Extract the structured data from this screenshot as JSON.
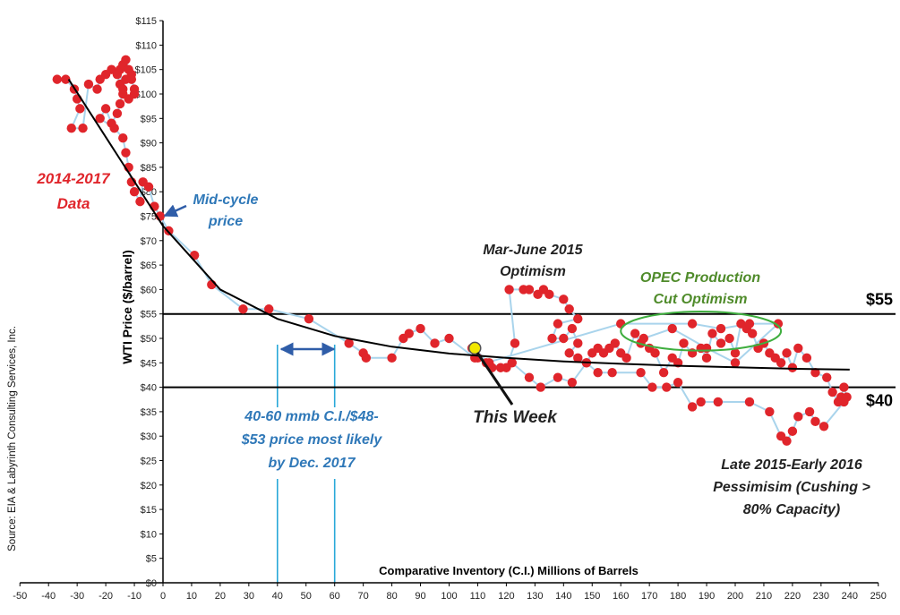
{
  "chart_data": {
    "type": "scatter",
    "title": "",
    "xlabel": "Comparative Inventory (C.I.) Millions of Barrels",
    "ylabel": "WTI Price ($/barrel)",
    "source": "Source: EIA & Labyrinth Consulting Services, Inc.",
    "xlim": [
      -50,
      250
    ],
    "ylim": [
      0,
      115
    ],
    "xticks": [
      -50,
      -40,
      -30,
      -20,
      -10,
      0,
      10,
      20,
      30,
      40,
      50,
      60,
      70,
      80,
      90,
      100,
      110,
      120,
      130,
      140,
      150,
      160,
      170,
      180,
      190,
      200,
      210,
      220,
      230,
      240,
      250
    ],
    "yticks": [
      0,
      5,
      10,
      15,
      20,
      25,
      30,
      35,
      40,
      45,
      50,
      55,
      60,
      65,
      70,
      75,
      80,
      85,
      90,
      95,
      100,
      105,
      110,
      115
    ],
    "ytick_labels": [
      "$0",
      "$5",
      "$10",
      "$15",
      "$20",
      "$25",
      "$30",
      "$35",
      "$40",
      "$45",
      "$50",
      "$55",
      "$60",
      "$65",
      "$70",
      "$75",
      "$80",
      "$85",
      "$90",
      "$95",
      "$100",
      "$105",
      "$110",
      "$115"
    ],
    "grid": false,
    "series": [
      {
        "name": "2014-2017 Data",
        "color": "#e0252b",
        "line_color": "#a9d4ec",
        "points": [
          [
            -37,
            103
          ],
          [
            -34,
            103
          ],
          [
            -31,
            101
          ],
          [
            -30,
            99
          ],
          [
            -29,
            97
          ],
          [
            -32,
            93
          ],
          [
            -28,
            93
          ],
          [
            -26,
            102
          ],
          [
            -23,
            101
          ],
          [
            -22,
            103
          ],
          [
            -20,
            104
          ],
          [
            -18,
            105
          ],
          [
            -16,
            104
          ],
          [
            -15,
            102
          ],
          [
            -14,
            100
          ],
          [
            -15,
            105
          ],
          [
            -14,
            106
          ],
          [
            -13,
            107
          ],
          [
            -12,
            105
          ],
          [
            -11,
            103
          ],
          [
            -10,
            101
          ],
          [
            -12,
            99
          ],
          [
            -10,
            100
          ],
          [
            -11,
            104
          ],
          [
            -13,
            103
          ],
          [
            -14,
            101
          ],
          [
            -15,
            98
          ],
          [
            -16,
            96
          ],
          [
            -18,
            94
          ],
          [
            -20,
            97
          ],
          [
            -22,
            95
          ],
          [
            -17,
            93
          ],
          [
            -14,
            91
          ],
          [
            -13,
            88
          ],
          [
            -12,
            85
          ],
          [
            -11,
            82
          ],
          [
            -10,
            80
          ],
          [
            -8,
            78
          ],
          [
            -7,
            82
          ],
          [
            -5,
            81
          ],
          [
            -3,
            77
          ],
          [
            -1,
            75
          ],
          [
            2,
            72
          ],
          [
            11,
            67
          ],
          [
            17,
            61
          ],
          [
            28,
            56
          ],
          [
            37,
            56
          ],
          [
            51,
            54
          ],
          [
            65,
            49
          ],
          [
            70,
            47
          ],
          [
            71,
            46
          ],
          [
            80,
            46
          ],
          [
            84,
            50
          ],
          [
            86,
            51
          ],
          [
            90,
            52
          ],
          [
            95,
            49
          ],
          [
            100,
            50
          ],
          [
            109,
            46
          ],
          [
            109,
            48
          ],
          [
            115,
            44
          ],
          [
            120,
            44
          ],
          [
            123,
            49
          ],
          [
            121,
            60
          ],
          [
            126,
            60
          ],
          [
            128,
            60
          ],
          [
            131,
            59
          ],
          [
            133,
            60
          ],
          [
            135,
            59
          ],
          [
            140,
            58
          ],
          [
            142,
            56
          ],
          [
            145,
            54
          ],
          [
            138,
            53
          ],
          [
            136,
            50
          ],
          [
            140,
            50
          ],
          [
            143,
            52
          ],
          [
            145,
            49
          ],
          [
            142,
            47
          ],
          [
            145,
            46
          ],
          [
            148,
            45
          ],
          [
            150,
            47
          ],
          [
            152,
            48
          ],
          [
            154,
            47
          ],
          [
            156,
            48
          ],
          [
            158,
            49
          ],
          [
            160,
            47
          ],
          [
            162,
            46
          ],
          [
            165,
            51
          ],
          [
            167,
            49
          ],
          [
            170,
            48
          ],
          [
            172,
            47
          ],
          [
            175,
            43
          ],
          [
            178,
            46
          ],
          [
            180,
            45
          ],
          [
            182,
            49
          ],
          [
            185,
            47
          ],
          [
            188,
            48
          ],
          [
            190,
            46
          ],
          [
            192,
            51
          ],
          [
            195,
            49
          ],
          [
            198,
            50
          ],
          [
            200,
            47
          ],
          [
            202,
            53
          ],
          [
            204,
            52
          ],
          [
            206,
            51
          ],
          [
            208,
            48
          ],
          [
            210,
            49
          ],
          [
            212,
            47
          ],
          [
            214,
            46
          ],
          [
            216,
            45
          ],
          [
            218,
            47
          ],
          [
            220,
            44
          ],
          [
            222,
            48
          ],
          [
            225,
            46
          ],
          [
            228,
            43
          ],
          [
            232,
            42
          ],
          [
            234,
            39
          ],
          [
            236,
            37
          ],
          [
            237,
            38
          ],
          [
            238,
            40
          ],
          [
            239,
            38
          ],
          [
            238,
            37
          ],
          [
            231,
            32
          ],
          [
            228,
            33
          ],
          [
            226,
            35
          ],
          [
            222,
            34
          ],
          [
            220,
            31
          ],
          [
            218,
            29
          ],
          [
            216,
            30
          ],
          [
            212,
            35
          ],
          [
            205,
            37
          ],
          [
            194,
            37
          ],
          [
            188,
            37
          ],
          [
            185,
            36
          ],
          [
            180,
            41
          ],
          [
            176,
            40
          ],
          [
            171,
            40
          ],
          [
            167,
            43
          ],
          [
            157,
            43
          ],
          [
            152,
            43
          ],
          [
            148,
            45
          ],
          [
            143,
            41
          ],
          [
            138,
            42
          ],
          [
            132,
            40
          ],
          [
            128,
            42
          ],
          [
            122,
            45
          ],
          [
            118,
            44
          ],
          [
            114,
            45
          ],
          [
            110,
            46
          ],
          [
            108,
            48
          ],
          [
            113,
            45
          ],
          [
            160,
            53
          ],
          [
            185,
            53
          ],
          [
            195,
            52
          ],
          [
            205,
            53
          ],
          [
            215,
            53
          ],
          [
            200,
            45
          ],
          [
            190,
            48
          ],
          [
            178,
            52
          ],
          [
            168,
            50
          ]
        ]
      }
    ],
    "this_week": {
      "x": 109,
      "y": 48,
      "color": "#f2e800"
    },
    "trend_curve": {
      "x": [
        -33,
        0,
        20,
        40,
        60,
        80,
        100,
        120,
        140,
        160,
        180,
        200,
        220,
        240
      ],
      "y": [
        103,
        73,
        60,
        54,
        50.5,
        48.3,
        46.9,
        46,
        45.3,
        44.8,
        44.4,
        44.1,
        43.8,
        43.6
      ],
      "color": "#000000"
    },
    "hlines": [
      {
        "y": 55,
        "label": "$55"
      },
      {
        "y": 40,
        "label": "$40"
      }
    ],
    "vlines": [
      {
        "x": 40
      },
      {
        "x": 60
      }
    ],
    "ellipse": {
      "cx": 188,
      "cy": 51.5,
      "rx": 28,
      "ry": 4,
      "color": "#3fae3f"
    },
    "annotations": {
      "data_label": [
        "2014-2017",
        "Data"
      ],
      "mid_cycle": [
        "Mid-cycle",
        "price"
      ],
      "mar_june": [
        "Mar-June 2015",
        "Optimism"
      ],
      "opec": [
        "OPEC Production",
        "Cut Optimism"
      ],
      "this_week": "This Week",
      "most_likely": [
        "40-60 mmb C.I./$48-",
        "$53 price most likely",
        "by Dec. 2017"
      ],
      "late_2015": [
        "Late 2015-Early 2016",
        "Pessimisim (Cushing >",
        "80% Capacity)"
      ]
    },
    "colors": {
      "red_text": "#e0252b",
      "blue_text": "#2f78b8",
      "green_text": "#4f8b2a",
      "vline": "#29a8d8"
    }
  }
}
